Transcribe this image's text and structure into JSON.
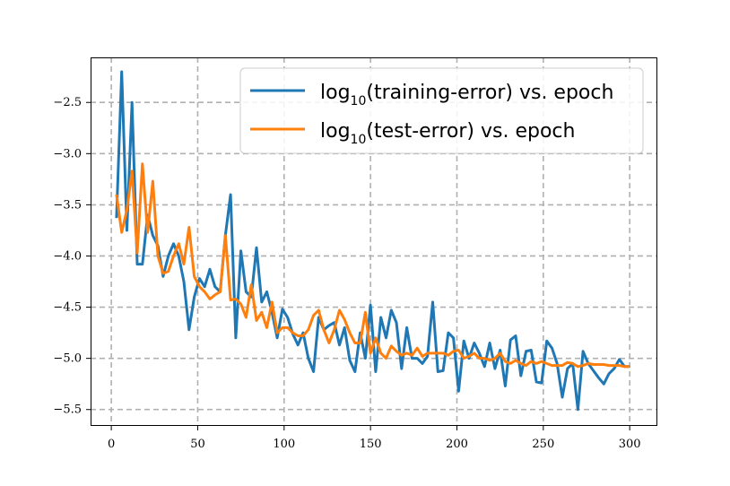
{
  "chart_data": {
    "type": "line",
    "title": "",
    "xlabel": "",
    "ylabel": "",
    "xlim": [
      -12,
      316
    ],
    "ylim": [
      -5.66,
      -2.06
    ],
    "xticks": [
      0,
      50,
      100,
      150,
      200,
      250,
      300
    ],
    "yticks": [
      -5.5,
      -5.0,
      -4.5,
      -4.0,
      -3.5,
      -3.0,
      -2.5
    ],
    "xtick_labels": [
      "0",
      "50",
      "100",
      "150",
      "200",
      "250",
      "300"
    ],
    "ytick_labels": [
      "−5.5",
      "−5.0",
      "−4.5",
      "−4.0",
      "−3.5",
      "−3.0",
      "−2.5"
    ],
    "grid": true,
    "legend_placement": "top-right",
    "series": [
      {
        "name": "log10(training-error) vs. epoch",
        "legend_prefix": "log",
        "legend_sub": "10",
        "legend_suffix": "(training-error) vs. epoch",
        "color": "#1f77b4",
        "points": [
          [
            3,
            -3.63
          ],
          [
            6,
            -2.2
          ],
          [
            9,
            -3.75
          ],
          [
            12,
            -2.5
          ],
          [
            15,
            -4.08
          ],
          [
            18,
            -4.08
          ],
          [
            21,
            -3.6
          ],
          [
            24,
            -3.8
          ],
          [
            27,
            -3.9
          ],
          [
            30,
            -4.2
          ],
          [
            33,
            -4
          ],
          [
            36,
            -3.88
          ],
          [
            39,
            -4
          ],
          [
            42,
            -4.25
          ],
          [
            45,
            -4.72
          ],
          [
            48,
            -4.4
          ],
          [
            51,
            -4.22
          ],
          [
            54,
            -4.3
          ],
          [
            57,
            -4.13
          ],
          [
            60,
            -4.3
          ],
          [
            63,
            -4.35
          ],
          [
            66,
            -3.8
          ],
          [
            69,
            -3.4
          ],
          [
            72,
            -4.8
          ],
          [
            75,
            -3.95
          ],
          [
            78,
            -4.35
          ],
          [
            81,
            -4.4
          ],
          [
            84,
            -3.92
          ],
          [
            87,
            -4.45
          ],
          [
            90,
            -4.35
          ],
          [
            93,
            -4.55
          ],
          [
            96,
            -4.8
          ],
          [
            99,
            -4.52
          ],
          [
            102,
            -4.6
          ],
          [
            105,
            -4.76
          ],
          [
            108,
            -4.87
          ],
          [
            111,
            -4.75
          ],
          [
            114,
            -5
          ],
          [
            117,
            -5.13
          ],
          [
            120,
            -4.6
          ],
          [
            123,
            -4.72
          ],
          [
            126,
            -4.68
          ],
          [
            129,
            -4.65
          ],
          [
            132,
            -4.87
          ],
          [
            135,
            -4.7
          ],
          [
            138,
            -5.02
          ],
          [
            141,
            -5.13
          ],
          [
            144,
            -4.75
          ],
          [
            147,
            -5
          ],
          [
            150,
            -4.48
          ],
          [
            153,
            -5.13
          ],
          [
            156,
            -4.6
          ],
          [
            159,
            -4.8
          ],
          [
            162,
            -4.53
          ],
          [
            165,
            -4.65
          ],
          [
            168,
            -5.1
          ],
          [
            171,
            -4.7
          ],
          [
            174,
            -5
          ],
          [
            177,
            -5
          ],
          [
            180,
            -5.05
          ],
          [
            183,
            -4.98
          ],
          [
            186,
            -4.45
          ],
          [
            189,
            -5.13
          ],
          [
            192,
            -5.12
          ],
          [
            195,
            -4.75
          ],
          [
            198,
            -4.8
          ],
          [
            201,
            -5.32
          ],
          [
            204,
            -4.83
          ],
          [
            207,
            -5
          ],
          [
            210,
            -4.85
          ],
          [
            213,
            -4.95
          ],
          [
            216,
            -5.08
          ],
          [
            219,
            -4.85
          ],
          [
            222,
            -5.1
          ],
          [
            225,
            -4.92
          ],
          [
            228,
            -5.27
          ],
          [
            231,
            -4.82
          ],
          [
            234,
            -4.78
          ],
          [
            237,
            -5.17
          ],
          [
            240,
            -4.93
          ],
          [
            243,
            -4.92
          ],
          [
            246,
            -5.23
          ],
          [
            249,
            -5.24
          ],
          [
            252,
            -4.83
          ],
          [
            255,
            -4.9
          ],
          [
            258,
            -5.05
          ],
          [
            261,
            -5.38
          ],
          [
            264,
            -5.1
          ],
          [
            267,
            -5.05
          ],
          [
            270,
            -5.5
          ],
          [
            273,
            -4.93
          ],
          [
            276,
            -5.05
          ],
          [
            279,
            -5.12
          ],
          [
            282,
            -5.19
          ],
          [
            285,
            -5.25
          ],
          [
            288,
            -5.15
          ],
          [
            291,
            -5.1
          ],
          [
            294,
            -5.01
          ],
          [
            297,
            -5.08
          ],
          [
            300,
            -5.08
          ]
        ]
      },
      {
        "name": "log10(test-error) vs. epoch",
        "legend_prefix": "log",
        "legend_sub": "10",
        "legend_suffix": "(test-error) vs. epoch",
        "color": "#ff7f0e",
        "points": [
          [
            3,
            -3.4
          ],
          [
            6,
            -3.77
          ],
          [
            9,
            -3.55
          ],
          [
            12,
            -3.17
          ],
          [
            15,
            -3.97
          ],
          [
            18,
            -3.1
          ],
          [
            21,
            -3.77
          ],
          [
            24,
            -3.27
          ],
          [
            27,
            -4
          ],
          [
            30,
            -4.17
          ],
          [
            33,
            -4.15
          ],
          [
            36,
            -4
          ],
          [
            39,
            -3.88
          ],
          [
            42,
            -4.08
          ],
          [
            45,
            -3.72
          ],
          [
            48,
            -4.2
          ],
          [
            51,
            -4.3
          ],
          [
            54,
            -4.35
          ],
          [
            57,
            -4.42
          ],
          [
            60,
            -4.38
          ],
          [
            63,
            -4.35
          ],
          [
            66,
            -3.8
          ],
          [
            69,
            -4.43
          ],
          [
            72,
            -4.42
          ],
          [
            75,
            -4.47
          ],
          [
            78,
            -4.6
          ],
          [
            81,
            -4.28
          ],
          [
            84,
            -4.63
          ],
          [
            87,
            -4.55
          ],
          [
            90,
            -4.7
          ],
          [
            93,
            -4.45
          ],
          [
            96,
            -4.75
          ],
          [
            99,
            -4.7
          ],
          [
            102,
            -4.7
          ],
          [
            105,
            -4.75
          ],
          [
            108,
            -4.78
          ],
          [
            111,
            -4.78
          ],
          [
            114,
            -4.72
          ],
          [
            117,
            -4.58
          ],
          [
            120,
            -4.53
          ],
          [
            123,
            -4.72
          ],
          [
            126,
            -4.85
          ],
          [
            129,
            -4.72
          ],
          [
            132,
            -4.53
          ],
          [
            135,
            -4.62
          ],
          [
            138,
            -4.75
          ],
          [
            141,
            -4.85
          ],
          [
            144,
            -4.85
          ],
          [
            147,
            -4.55
          ],
          [
            150,
            -4.95
          ],
          [
            153,
            -4.8
          ],
          [
            156,
            -4.95
          ],
          [
            159,
            -5
          ],
          [
            162,
            -4.88
          ],
          [
            165,
            -4.93
          ],
          [
            168,
            -4.97
          ],
          [
            171,
            -4.95
          ],
          [
            174,
            -4.97
          ],
          [
            177,
            -4.9
          ],
          [
            180,
            -4.98
          ],
          [
            183,
            -4.95
          ],
          [
            186,
            -4.95
          ],
          [
            189,
            -4.95
          ],
          [
            192,
            -4.95
          ],
          [
            195,
            -4.97
          ],
          [
            198,
            -4.93
          ],
          [
            201,
            -4.92
          ],
          [
            204,
            -5
          ],
          [
            207,
            -4.98
          ],
          [
            210,
            -4.95
          ],
          [
            213,
            -5
          ],
          [
            216,
            -5
          ],
          [
            219,
            -5.02
          ],
          [
            222,
            -5
          ],
          [
            225,
            -4.95
          ],
          [
            228,
            -5.03
          ],
          [
            231,
            -5.05
          ],
          [
            234,
            -5.02
          ],
          [
            237,
            -5.05
          ],
          [
            240,
            -5.07
          ],
          [
            243,
            -5.03
          ],
          [
            246,
            -5.05
          ],
          [
            249,
            -5.03
          ],
          [
            252,
            -5.05
          ],
          [
            255,
            -5.07
          ],
          [
            258,
            -5.07
          ],
          [
            261,
            -5.07
          ],
          [
            264,
            -5.04
          ],
          [
            267,
            -5.05
          ],
          [
            270,
            -5.08
          ],
          [
            273,
            -5.07
          ],
          [
            276,
            -5.05
          ],
          [
            279,
            -5.06
          ],
          [
            282,
            -5.06
          ],
          [
            285,
            -5.06
          ],
          [
            288,
            -5.07
          ],
          [
            291,
            -5.07
          ],
          [
            294,
            -5.07
          ],
          [
            297,
            -5.08
          ],
          [
            300,
            -5.08
          ]
        ]
      }
    ]
  }
}
